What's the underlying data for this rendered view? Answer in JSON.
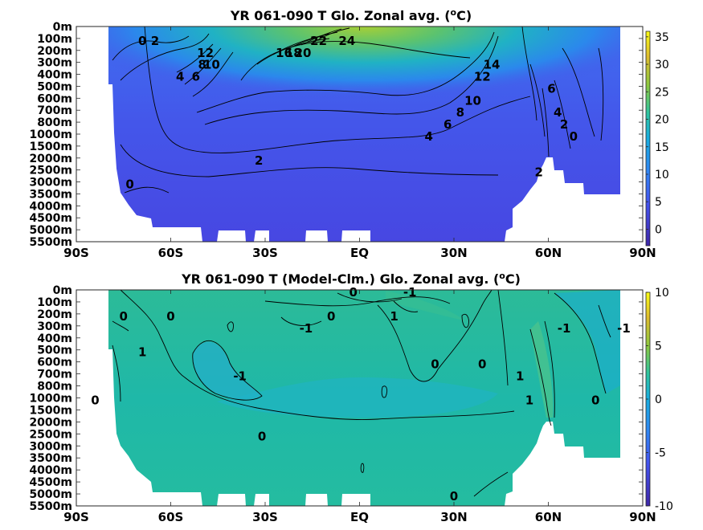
{
  "chart_data": [
    {
      "type": "heatmap",
      "title": "YR 061-090 T Glo. Zonal avg. (",
      "title_unit_sup": "o",
      "title_unit_tail": "C)",
      "x_ticks": [
        "90S",
        "60S",
        "30S",
        "EQ",
        "30N",
        "60N",
        "90N"
      ],
      "x_range": [
        -90,
        90
      ],
      "y_ticks": [
        "0m",
        "100m",
        "200m",
        "300m",
        "400m",
        "500m",
        "600m",
        "700m",
        "800m",
        "1000m",
        "1500m",
        "2000m",
        "2500m",
        "3000m",
        "3500m",
        "4000m",
        "4500m",
        "5000m",
        "5500m"
      ],
      "colorbar_range": [
        -3,
        36
      ],
      "colorbar_ticks": [
        "35",
        "30",
        "25",
        "20",
        "15",
        "10",
        "5",
        "0"
      ],
      "colorbar_tick_values": [
        35,
        30,
        25,
        20,
        15,
        10,
        5,
        0
      ],
      "contour_labels": [
        {
          "text": "24",
          "lat": -4,
          "depth": "100m"
        },
        {
          "text": "22",
          "lat": -13,
          "depth": "100m"
        },
        {
          "text": "20",
          "lat": -18,
          "depth": "200m"
        },
        {
          "text": "18",
          "lat": -21,
          "depth": "200m"
        },
        {
          "text": "16",
          "lat": -24,
          "depth": "200m"
        },
        {
          "text": "14",
          "lat": 42,
          "depth": "300m"
        },
        {
          "text": "12",
          "lat": 39,
          "depth": "400m"
        },
        {
          "text": "10",
          "lat": 36,
          "depth": "600m"
        },
        {
          "text": "8",
          "lat": 32,
          "depth": "700m"
        },
        {
          "text": "6",
          "lat": 28,
          "depth": "800m"
        },
        {
          "text": "4",
          "lat": 22,
          "depth": "1000m"
        },
        {
          "text": "2",
          "lat": -32,
          "depth": "2000m"
        },
        {
          "text": "2",
          "lat": 57,
          "depth": "2500m"
        },
        {
          "text": "0",
          "lat": -73,
          "depth": "3000m"
        },
        {
          "text": "0",
          "lat": -69,
          "depth": "100m"
        },
        {
          "text": "2",
          "lat": -65,
          "depth": "100m"
        },
        {
          "text": "12",
          "lat": -49,
          "depth": "200m"
        },
        {
          "text": "10",
          "lat": -47,
          "depth": "300m"
        },
        {
          "text": "8",
          "lat": -50,
          "depth": "300m"
        },
        {
          "text": "6",
          "lat": -52,
          "depth": "400m"
        },
        {
          "text": "4",
          "lat": -57,
          "depth": "400m"
        },
        {
          "text": "6",
          "lat": 61,
          "depth": "500m"
        },
        {
          "text": "4",
          "lat": 63,
          "depth": "700m"
        },
        {
          "text": "2",
          "lat": 65,
          "depth": "800m"
        },
        {
          "text": "0",
          "lat": 68,
          "depth": "1000m"
        }
      ]
    },
    {
      "type": "heatmap",
      "title": "YR 061-090 T (Model-Clm.) Glo. Zonal avg. (",
      "title_unit_sup": "o",
      "title_unit_tail": "C)",
      "x_ticks": [
        "90S",
        "60S",
        "30S",
        "EQ",
        "30N",
        "60N",
        "90N"
      ],
      "x_range": [
        -90,
        90
      ],
      "y_ticks": [
        "0m",
        "100m",
        "200m",
        "300m",
        "400m",
        "500m",
        "600m",
        "700m",
        "800m",
        "1000m",
        "1500m",
        "2000m",
        "2500m",
        "3000m",
        "3500m",
        "4000m",
        "4500m",
        "5000m",
        "5500m"
      ],
      "colorbar_range": [
        -10,
        10
      ],
      "colorbar_ticks": [
        "10",
        "5",
        "0",
        "-5",
        "-10"
      ],
      "colorbar_tick_values": [
        10,
        5,
        0,
        -5,
        -10
      ],
      "contour_labels": [
        {
          "text": "0",
          "lat": -2,
          "depth": "0m"
        },
        {
          "text": "-1",
          "lat": 16,
          "depth": "0m"
        },
        {
          "text": "1",
          "lat": 11,
          "depth": "200m"
        },
        {
          "text": "0",
          "lat": -75,
          "depth": "200m"
        },
        {
          "text": "0",
          "lat": -60,
          "depth": "200m"
        },
        {
          "text": "1",
          "lat": -69,
          "depth": "500m"
        },
        {
          "text": "0",
          "lat": -84,
          "depth": "1000m"
        },
        {
          "text": "-1",
          "lat": -17,
          "depth": "300m"
        },
        {
          "text": "0",
          "lat": -9,
          "depth": "200m"
        },
        {
          "text": "-1",
          "lat": -38,
          "depth": "700m"
        },
        {
          "text": "0",
          "lat": -31,
          "depth": "2500m"
        },
        {
          "text": "0",
          "lat": 24,
          "depth": "600m"
        },
        {
          "text": "0",
          "lat": 39,
          "depth": "600m"
        },
        {
          "text": "1",
          "lat": 51,
          "depth": "700m"
        },
        {
          "text": "1",
          "lat": 54,
          "depth": "1000m"
        },
        {
          "text": "-1",
          "lat": 65,
          "depth": "300m"
        },
        {
          "text": "-1",
          "lat": 84,
          "depth": "300m"
        },
        {
          "text": "0",
          "lat": 75,
          "depth": "1000m"
        },
        {
          "text": "0",
          "lat": 30,
          "depth": "5000m"
        }
      ]
    }
  ]
}
